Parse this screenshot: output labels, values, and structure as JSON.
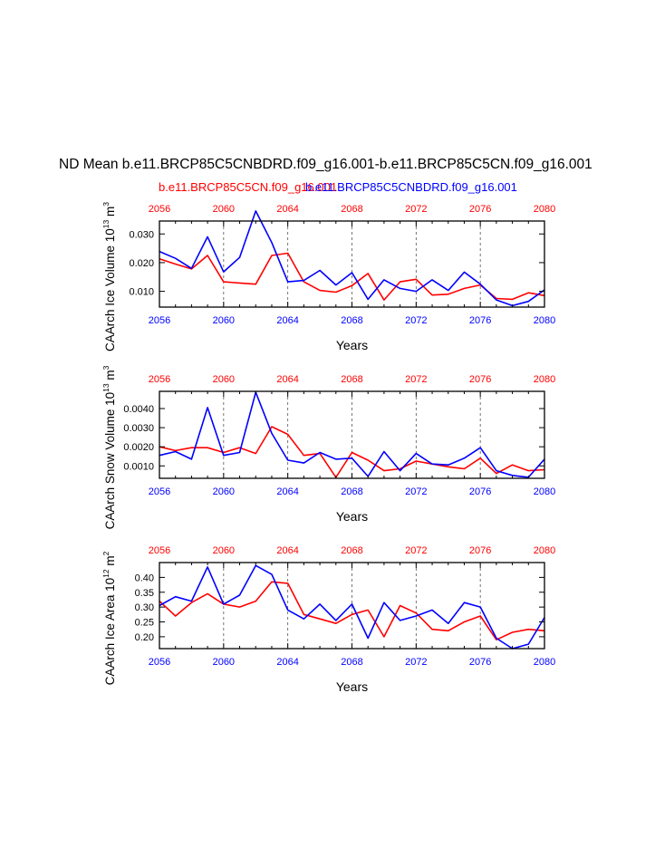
{
  "title": "ND Mean b.e11.BRCP85C5CNBDRD.f09_g16.001-b.e11.BRCP85C5CN.f09_g16.001",
  "legend": {
    "red_label": "b.e11.BRCP85C5CN.f09_g16.001",
    "blue_label": "b.e11.BRCP85C5CNBDRD.f09_g16.001"
  },
  "colors": {
    "red": "#ff0000",
    "blue": "#0000ff",
    "axis": "#000000"
  },
  "years": [
    2056,
    2057,
    2058,
    2059,
    2060,
    2061,
    2062,
    2063,
    2064,
    2065,
    2066,
    2067,
    2068,
    2069,
    2070,
    2071,
    2072,
    2073,
    2074,
    2075,
    2076,
    2077,
    2078,
    2079,
    2080
  ],
  "x_ticks": [
    "2056",
    "2060",
    "2064",
    "2068",
    "2072",
    "2076",
    "2080"
  ],
  "chart_data": [
    {
      "type": "line",
      "ylabel_main": "CAArch Ice Volume 10",
      "ylabel_exp": "13",
      "ylabel_unit": " m",
      "ylabel_unit_exp": "3",
      "xlabel": "Years",
      "xlim": [
        2056,
        2080
      ],
      "ylim": [
        0.0045,
        0.0345
      ],
      "yticks": [
        0.01,
        0.02,
        0.03
      ],
      "ytick_labels": [
        "0.010",
        "0.020",
        "0.030"
      ],
      "series": [
        {
          "name": "b.e11.BRCP85C5CN.f09_g16.001",
          "color": "red",
          "values": [
            0.0213,
            0.0195,
            0.0178,
            0.0225,
            0.0133,
            0.0129,
            0.0125,
            0.0225,
            0.0233,
            0.0133,
            0.0103,
            0.0097,
            0.012,
            0.0162,
            0.007,
            0.0133,
            0.0142,
            0.0087,
            0.009,
            0.011,
            0.0122,
            0.0075,
            0.0072,
            0.0095,
            0.0085
          ]
        },
        {
          "name": "b.e11.BRCP85C5CNBDRD.f09_g16.001",
          "color": "blue",
          "values": [
            0.0239,
            0.0215,
            0.018,
            0.029,
            0.0168,
            0.0218,
            0.038,
            0.027,
            0.0133,
            0.0138,
            0.0173,
            0.0122,
            0.0165,
            0.0072,
            0.014,
            0.011,
            0.01,
            0.014,
            0.0103,
            0.0167,
            0.0125,
            0.007,
            0.005,
            0.0065,
            0.0105
          ]
        }
      ]
    },
    {
      "type": "line",
      "ylabel_main": "CAArch Snow Volume 10",
      "ylabel_exp": "13",
      "ylabel_unit": " m",
      "ylabel_unit_exp": "3",
      "xlabel": "Years",
      "xlim": [
        2056,
        2080
      ],
      "ylim": [
        0.00035,
        0.0049
      ],
      "yticks": [
        0.001,
        0.002,
        0.003,
        0.004
      ],
      "ytick_labels": [
        "0.0010",
        "0.0020",
        "0.0030",
        "0.0040"
      ],
      "series": [
        {
          "name": "b.e11.BRCP85C5CN.f09_g16.001",
          "color": "red",
          "values": [
            0.002,
            0.0018,
            0.00195,
            0.00195,
            0.0017,
            0.00195,
            0.00165,
            0.00305,
            0.00265,
            0.00155,
            0.00165,
            0.0004,
            0.0017,
            0.0013,
            0.00075,
            0.00085,
            0.00125,
            0.0011,
            0.00095,
            0.00085,
            0.0014,
            0.0006,
            0.00105,
            0.00075,
            0.0008
          ]
        },
        {
          "name": "b.e11.BRCP85C5CNBDRD.f09_g16.001",
          "color": "blue",
          "values": [
            0.00155,
            0.00175,
            0.00135,
            0.00405,
            0.00155,
            0.0017,
            0.00485,
            0.0027,
            0.0013,
            0.00115,
            0.0017,
            0.00135,
            0.0014,
            0.00045,
            0.00175,
            0.00075,
            0.00165,
            0.0011,
            0.00105,
            0.0014,
            0.00195,
            0.00075,
            0.0005,
            0.0004,
            0.00135
          ]
        }
      ]
    },
    {
      "type": "line",
      "ylabel_main": "CAArch Ice Area 10",
      "ylabel_exp": "12",
      "ylabel_unit": " m",
      "ylabel_unit_exp": "2",
      "xlabel": "Years",
      "xlim": [
        2056,
        2080
      ],
      "ylim": [
        0.16,
        0.45
      ],
      "yticks": [
        0.2,
        0.25,
        0.3,
        0.35,
        0.4
      ],
      "ytick_labels": [
        "0.20",
        "0.25",
        "0.30",
        "0.35",
        "0.40"
      ],
      "series": [
        {
          "name": "b.e11.BRCP85C5CN.f09_g16.001",
          "color": "red",
          "values": [
            0.32,
            0.27,
            0.315,
            0.345,
            0.31,
            0.3,
            0.32,
            0.385,
            0.38,
            0.275,
            0.26,
            0.245,
            0.275,
            0.29,
            0.2,
            0.305,
            0.28,
            0.225,
            0.22,
            0.25,
            0.27,
            0.19,
            0.215,
            0.225,
            0.22
          ]
        },
        {
          "name": "b.e11.BRCP85C5CNBDRD.f09_g16.001",
          "color": "blue",
          "values": [
            0.305,
            0.335,
            0.32,
            0.435,
            0.31,
            0.34,
            0.44,
            0.41,
            0.29,
            0.26,
            0.31,
            0.255,
            0.31,
            0.195,
            0.315,
            0.255,
            0.27,
            0.29,
            0.245,
            0.315,
            0.3,
            0.195,
            0.16,
            0.175,
            0.265
          ]
        }
      ]
    }
  ]
}
